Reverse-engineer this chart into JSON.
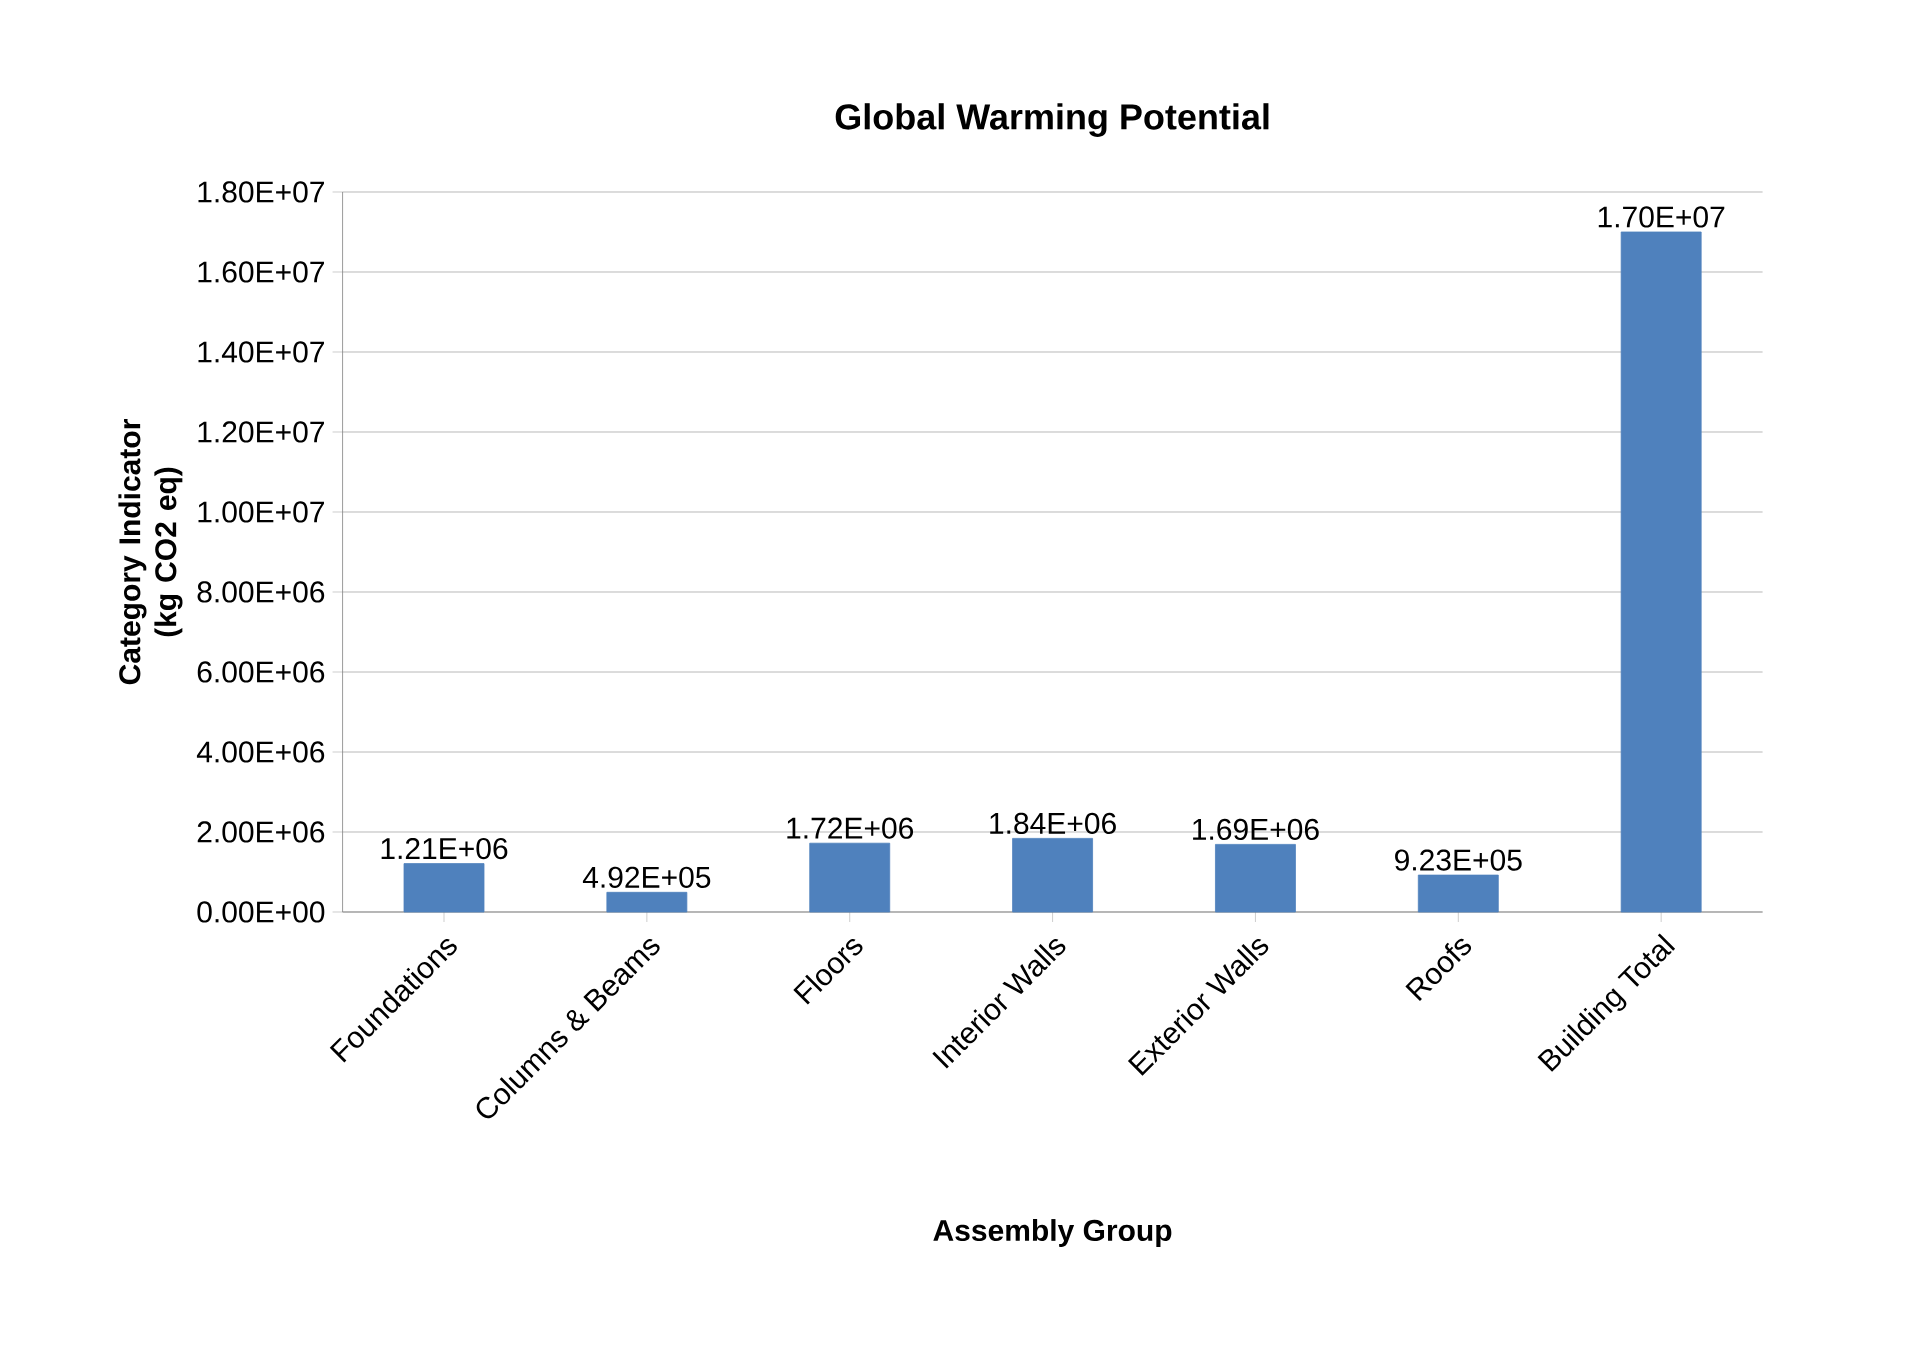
{
  "chart_data": {
    "type": "bar",
    "title": "Global Warming Potential",
    "xlabel": "Assembly Group",
    "ylabel": "Category Indicator (kg CO2 eq)",
    "categories": [
      "Foundations",
      "Columns & Beams",
      "Floors",
      "Interior Walls",
      "Exterior Walls",
      "Roofs",
      "Building Total"
    ],
    "values": [
      1210000,
      492000,
      1720000,
      1840000,
      1690000,
      923000,
      17000000
    ],
    "value_labels": [
      "1.21E+06",
      "4.92E+05",
      "1.72E+06",
      "1.84E+06",
      "1.69E+06",
      "9.23E+05",
      "1.70E+07"
    ],
    "color": "#4f81bd",
    "ylim": [
      0,
      18000000
    ],
    "yticks": [
      {
        "value": 0,
        "label": "0.00E+00"
      },
      {
        "value": 2000000,
        "label": "2.00E+06"
      },
      {
        "value": 4000000,
        "label": "4.00E+06"
      },
      {
        "value": 6000000,
        "label": "6.00E+06"
      },
      {
        "value": 8000000,
        "label": "8.00E+06"
      },
      {
        "value": 10000000,
        "label": "1.00E+07"
      },
      {
        "value": 12000000,
        "label": "1.20E+07"
      },
      {
        "value": 14000000,
        "label": "1.40E+07"
      },
      {
        "value": 16000000,
        "label": "1.60E+07"
      },
      {
        "value": 18000000,
        "label": "1.80E+07"
      }
    ],
    "grid": "y"
  }
}
